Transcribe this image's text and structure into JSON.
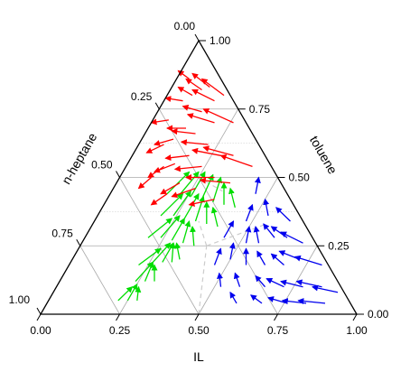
{
  "chart_data": {
    "type": "ternary-vector-field",
    "axes": {
      "bottom": {
        "label": "IL",
        "ticks": [
          "0.00",
          "0.25",
          "0.50",
          "0.75",
          "1.00"
        ]
      },
      "left": {
        "label": "n-heptane",
        "ticks": [
          "0.00",
          "0.25",
          "0.50",
          "0.75",
          "1.00"
        ]
      },
      "right": {
        "label": "toluene",
        "ticks": [
          "0.00",
          "0.25",
          "0.50",
          "0.75",
          "1.00"
        ]
      }
    },
    "grid": true,
    "colors": {
      "green": "#00dd00",
      "red": "#ff0000",
      "blue": "#0000ee",
      "frame": "#000000",
      "grid": "#aaaaaa",
      "boundary": "#cccccc"
    },
    "series": [
      {
        "color": "green",
        "vectors": [
          [
            0.22,
            0.73,
            0.05,
            0.02,
            0.05
          ],
          [
            0.25,
            0.7,
            0.05,
            0.0,
            0.06
          ],
          [
            0.28,
            0.67,
            0.05,
            -0.02,
            0.05
          ],
          [
            0.24,
            0.64,
            0.12,
            0.02,
            0.07
          ],
          [
            0.27,
            0.61,
            0.12,
            -0.01,
            0.07
          ],
          [
            0.3,
            0.58,
            0.12,
            -0.03,
            0.06
          ],
          [
            0.26,
            0.55,
            0.19,
            0.02,
            0.07
          ],
          [
            0.29,
            0.52,
            0.19,
            0.0,
            0.07
          ],
          [
            0.32,
            0.49,
            0.19,
            -0.03,
            0.07
          ],
          [
            0.22,
            0.6,
            0.18,
            0.04,
            0.06
          ],
          [
            0.34,
            0.46,
            0.2,
            -0.04,
            0.06
          ],
          [
            0.24,
            0.48,
            0.28,
            0.02,
            0.08
          ],
          [
            0.28,
            0.45,
            0.27,
            0.0,
            0.08
          ],
          [
            0.32,
            0.42,
            0.26,
            -0.02,
            0.08
          ],
          [
            0.36,
            0.39,
            0.25,
            -0.04,
            0.07
          ],
          [
            0.2,
            0.52,
            0.28,
            0.04,
            0.07
          ],
          [
            0.24,
            0.4,
            0.36,
            0.01,
            0.09
          ],
          [
            0.28,
            0.37,
            0.35,
            0.0,
            0.09
          ],
          [
            0.32,
            0.34,
            0.34,
            -0.02,
            0.09
          ],
          [
            0.36,
            0.31,
            0.33,
            -0.04,
            0.08
          ],
          [
            0.4,
            0.28,
            0.32,
            -0.05,
            0.07
          ],
          [
            0.2,
            0.44,
            0.36,
            0.03,
            0.08
          ],
          [
            0.26,
            0.31,
            0.43,
            0.0,
            0.09
          ],
          [
            0.3,
            0.28,
            0.42,
            -0.01,
            0.09
          ],
          [
            0.34,
            0.25,
            0.41,
            -0.02,
            0.09
          ],
          [
            0.38,
            0.22,
            0.4,
            -0.04,
            0.08
          ],
          [
            0.42,
            0.19,
            0.39,
            -0.05,
            0.07
          ],
          [
            0.22,
            0.35,
            0.43,
            0.02,
            0.09
          ],
          [
            0.18,
            0.38,
            0.44,
            0.03,
            0.08
          ]
        ]
      },
      {
        "color": "red",
        "vectors": [
          [
            0.06,
            0.16,
            0.78,
            -0.06,
            0.01
          ],
          [
            0.08,
            0.12,
            0.8,
            -0.06,
            0.03
          ],
          [
            0.1,
            0.08,
            0.82,
            -0.07,
            0.04
          ],
          [
            0.12,
            0.05,
            0.83,
            -0.08,
            0.05
          ],
          [
            0.16,
            0.06,
            0.78,
            -0.09,
            0.04
          ],
          [
            0.14,
            0.12,
            0.74,
            -0.07,
            0.02
          ],
          [
            0.12,
            0.2,
            0.68,
            -0.06,
            0.0
          ],
          [
            0.1,
            0.26,
            0.64,
            -0.05,
            -0.02
          ],
          [
            0.16,
            0.18,
            0.66,
            -0.08,
            0.01
          ],
          [
            0.2,
            0.1,
            0.7,
            -0.1,
            0.03
          ],
          [
            0.22,
            0.16,
            0.62,
            -0.09,
            0.01
          ],
          [
            0.18,
            0.24,
            0.58,
            -0.07,
            -0.01
          ],
          [
            0.15,
            0.3,
            0.55,
            -0.05,
            -0.03
          ],
          [
            0.24,
            0.22,
            0.54,
            -0.08,
            -0.01
          ],
          [
            0.28,
            0.14,
            0.58,
            -0.1,
            0.02
          ],
          [
            0.3,
            0.2,
            0.5,
            -0.09,
            0.0
          ],
          [
            0.26,
            0.28,
            0.46,
            -0.06,
            -0.03
          ],
          [
            0.2,
            0.32,
            0.48,
            -0.04,
            -0.04
          ],
          [
            0.12,
            0.34,
            0.54,
            -0.03,
            -0.04
          ],
          [
            0.08,
            0.3,
            0.62,
            -0.04,
            -0.03
          ],
          [
            0.05,
            0.24,
            0.71,
            -0.05,
            -0.01
          ],
          [
            0.32,
            0.1,
            0.58,
            -0.11,
            0.03
          ],
          [
            0.36,
            0.16,
            0.48,
            -0.1,
            0.01
          ],
          [
            0.34,
            0.24,
            0.42,
            -0.07,
            -0.02
          ],
          [
            0.04,
            0.1,
            0.86,
            -0.05,
            0.03
          ],
          [
            0.18,
            0.02,
            0.8,
            -0.1,
            0.06
          ],
          [
            0.26,
            0.04,
            0.7,
            -0.12,
            0.05
          ],
          [
            0.4,
            0.06,
            0.54,
            -0.12,
            0.04
          ],
          [
            0.1,
            0.4,
            0.5,
            -0.02,
            -0.04
          ],
          [
            0.18,
            0.38,
            0.44,
            -0.03,
            -0.04
          ]
        ]
      },
      {
        "color": "blue",
        "vectors": [
          [
            0.56,
            0.18,
            0.26,
            -0.04,
            0.06
          ],
          [
            0.6,
            0.12,
            0.28,
            -0.06,
            0.05
          ],
          [
            0.64,
            0.08,
            0.28,
            -0.07,
            0.04
          ],
          [
            0.56,
            0.26,
            0.18,
            -0.03,
            0.06
          ],
          [
            0.62,
            0.2,
            0.18,
            -0.05,
            0.05
          ],
          [
            0.68,
            0.14,
            0.18,
            -0.06,
            0.04
          ],
          [
            0.72,
            0.08,
            0.2,
            -0.08,
            0.03
          ],
          [
            0.66,
            0.24,
            0.1,
            -0.05,
            0.04
          ],
          [
            0.72,
            0.18,
            0.1,
            -0.07,
            0.03
          ],
          [
            0.78,
            0.12,
            0.1,
            -0.08,
            0.02
          ],
          [
            0.84,
            0.06,
            0.1,
            -0.09,
            0.02
          ],
          [
            0.76,
            0.2,
            0.04,
            -0.07,
            0.02
          ],
          [
            0.82,
            0.14,
            0.04,
            -0.08,
            0.01
          ],
          [
            0.88,
            0.08,
            0.04,
            -0.09,
            0.01
          ],
          [
            0.58,
            0.32,
            0.1,
            -0.04,
            0.05
          ],
          [
            0.5,
            0.3,
            0.2,
            -0.02,
            0.06
          ],
          [
            0.52,
            0.22,
            0.26,
            -0.02,
            0.06
          ],
          [
            0.48,
            0.18,
            0.34,
            -0.01,
            0.06
          ],
          [
            0.54,
            0.1,
            0.36,
            -0.04,
            0.06
          ],
          [
            0.62,
            0.04,
            0.34,
            -0.07,
            0.05
          ],
          [
            0.7,
            0.04,
            0.26,
            -0.09,
            0.04
          ],
          [
            0.8,
            0.02,
            0.18,
            -0.1,
            0.03
          ],
          [
            0.9,
            0.02,
            0.08,
            -0.09,
            0.02
          ],
          [
            0.46,
            0.36,
            0.18,
            -0.01,
            0.06
          ],
          [
            0.52,
            0.38,
            0.1,
            -0.03,
            0.05
          ],
          [
            0.68,
            0.28,
            0.04,
            -0.05,
            0.03
          ],
          [
            0.6,
            0.36,
            0.04,
            -0.04,
            0.04
          ],
          [
            0.44,
            0.28,
            0.28,
            0.0,
            0.06
          ],
          [
            0.46,
            0.1,
            0.44,
            -0.02,
            0.06
          ]
        ]
      }
    ]
  }
}
